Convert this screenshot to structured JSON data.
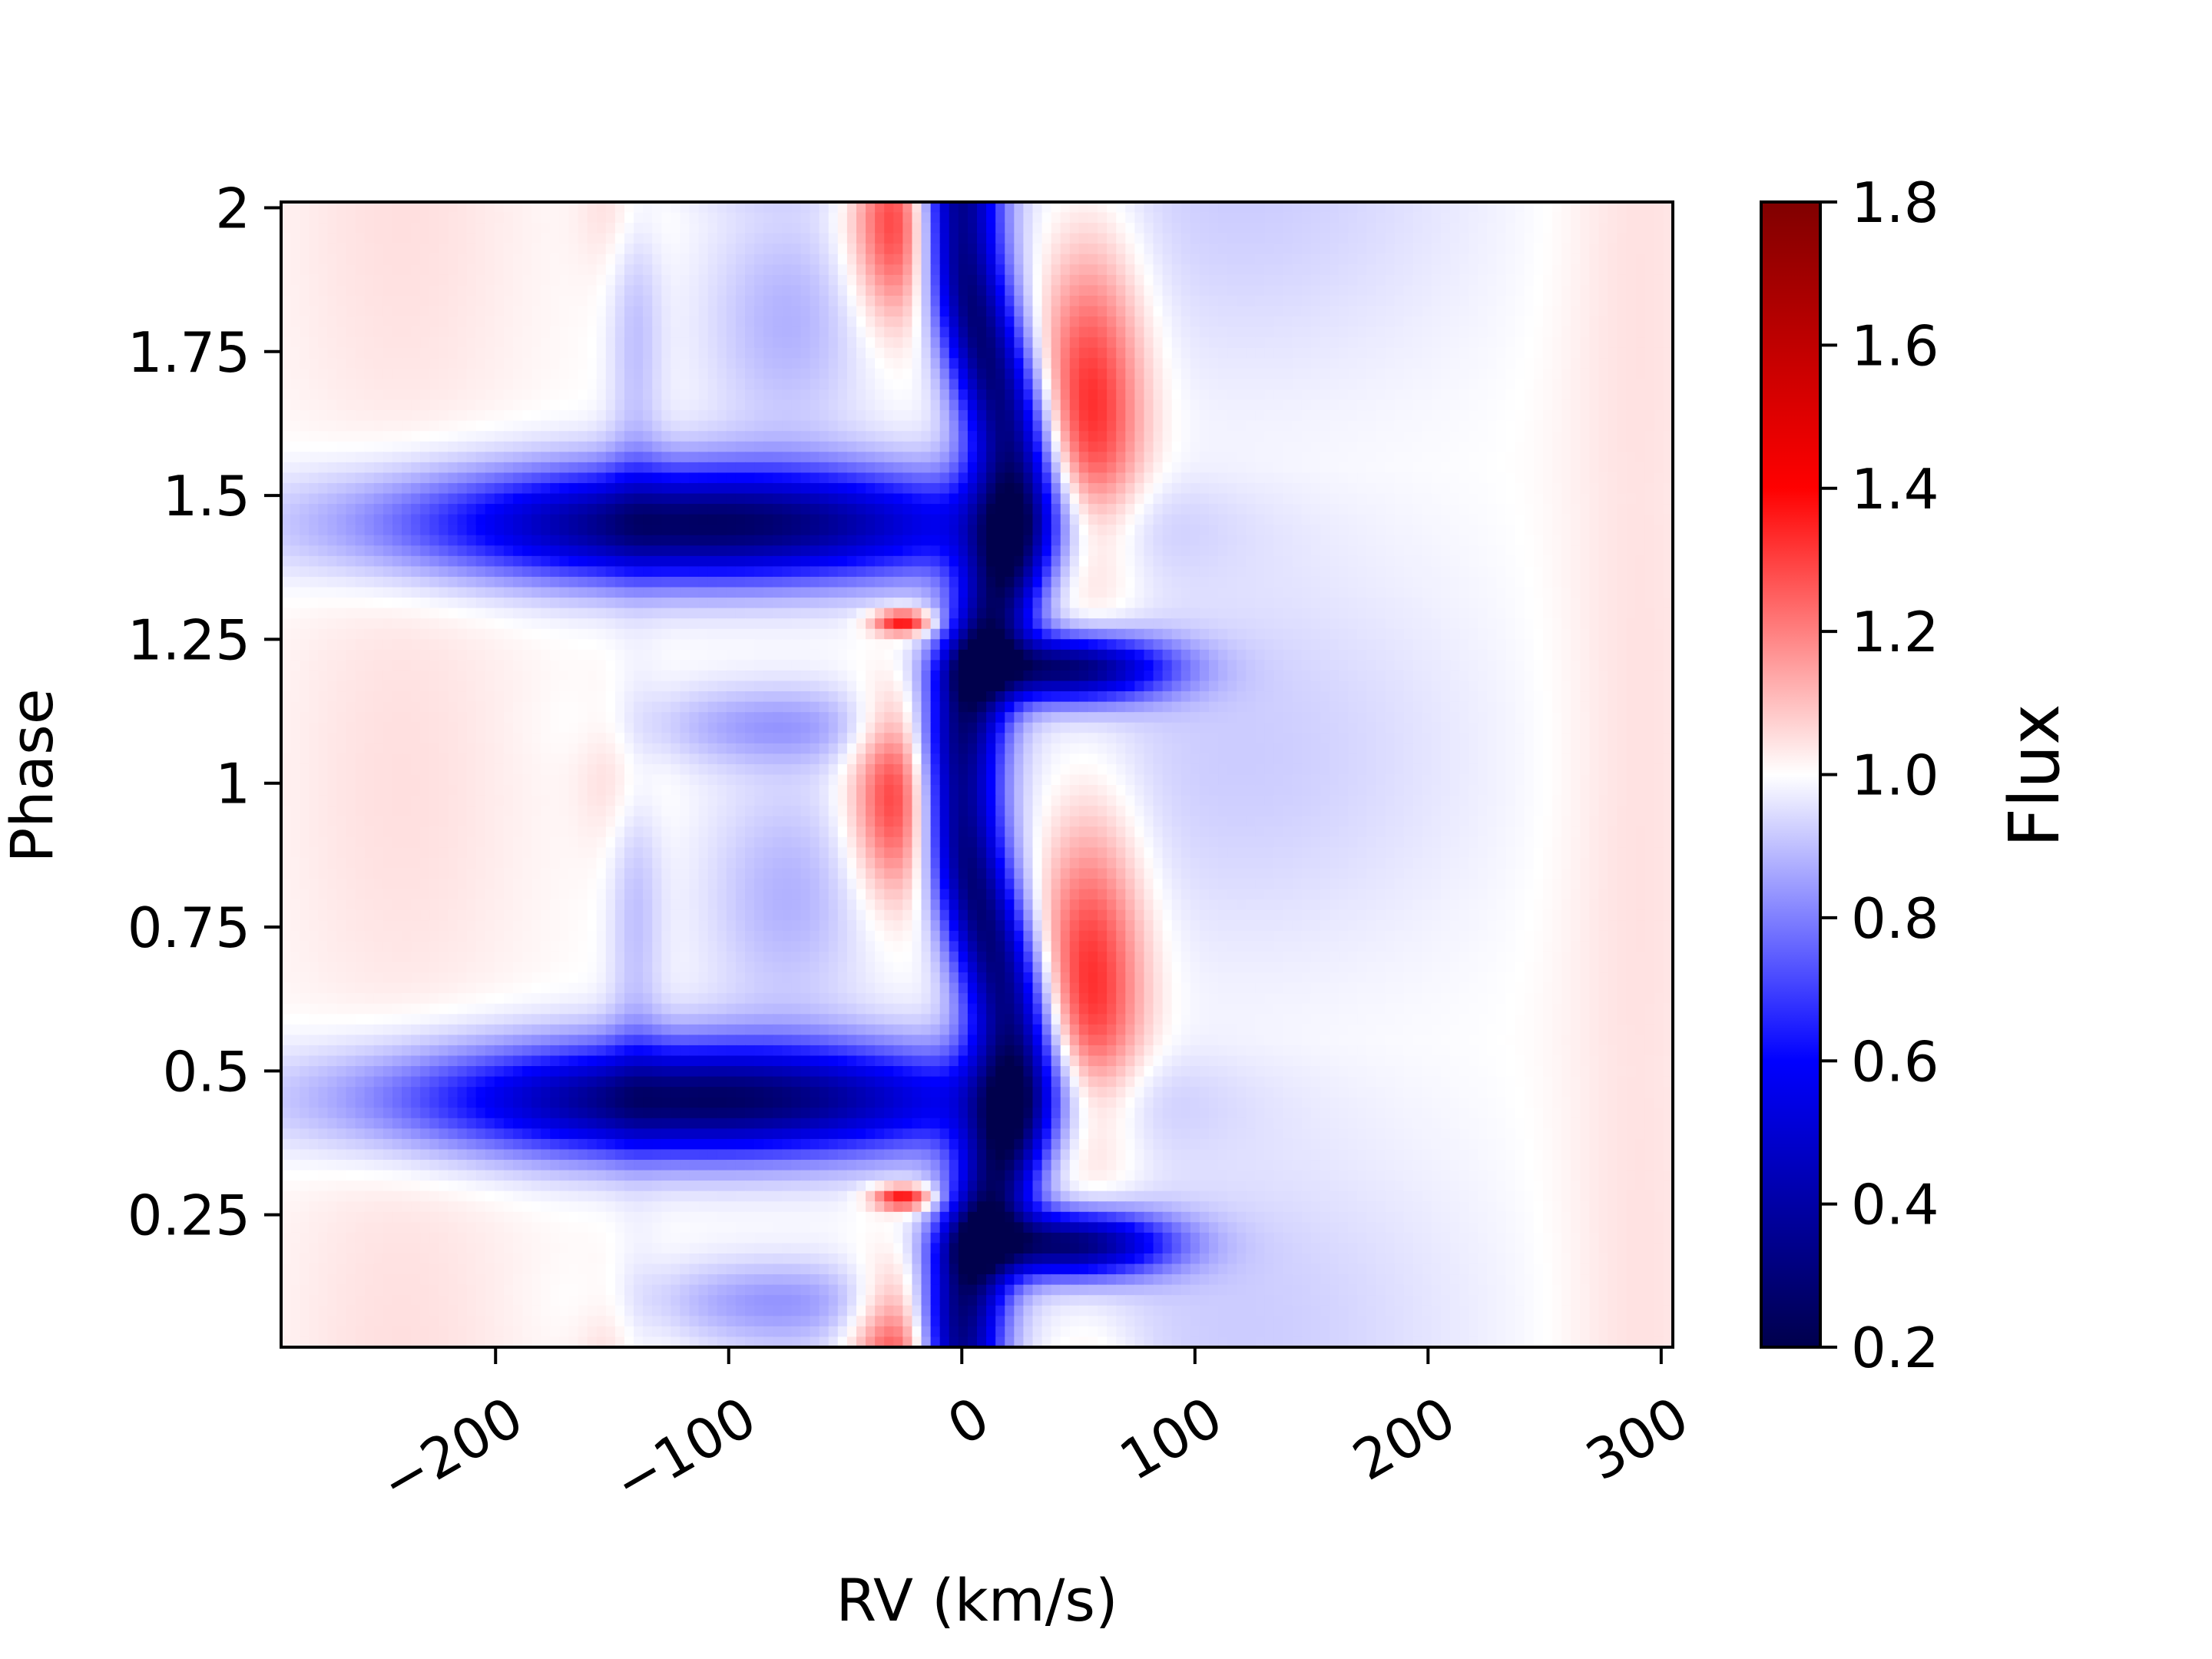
{
  "chart_data": {
    "type": "heatmap",
    "title": "",
    "xlabel": "RV (km/s)",
    "ylabel": "Phase",
    "xlim": [
      -292,
      305
    ],
    "ylim": [
      2.01,
      0.02
    ],
    "x_ticks": [
      -200,
      -100,
      0,
      100,
      200,
      300
    ],
    "x_tick_labels": [
      "−200",
      "−100",
      "0",
      "100",
      "200",
      "300"
    ],
    "y_ticks": [
      0.25,
      0.5,
      0.75,
      1,
      1.25,
      1.5,
      1.75,
      2
    ],
    "y_tick_labels": [
      "0.25",
      "0.5",
      "0.75",
      "1",
      "1.25",
      "1.5",
      "1.75",
      "2"
    ],
    "colorbar": {
      "label": "Flux",
      "range": [
        0.2,
        1.8
      ],
      "ticks": [
        0.2,
        0.4,
        0.6,
        0.8,
        1.0,
        1.2,
        1.4,
        1.6,
        1.8
      ],
      "tick_labels": [
        "0.2",
        "0.4",
        "0.6",
        "0.8",
        "1.0",
        "1.2",
        "1.4",
        "1.6",
        "1.8"
      ],
      "colormap": "seismic",
      "colors": [
        "#00004c",
        "#0000ff",
        "#ffffff",
        "#ff0000",
        "#800000"
      ]
    },
    "features": [
      {
        "kind": "absorption",
        "x": 10,
        "y": 1.0,
        "sx": 13,
        "sy": 1.2,
        "amp": -0.72,
        "rv_drift": 12,
        "period": 1
      },
      {
        "kind": "absorption",
        "x": -110,
        "y": 0.45,
        "sx": 90,
        "sy": 0.07,
        "amp": -0.75,
        "period": 1
      },
      {
        "kind": "absorption",
        "x": 45,
        "y": 0.2,
        "sx": 30,
        "sy": 0.04,
        "amp": -0.7,
        "period": 1
      },
      {
        "kind": "absorption",
        "x": -80,
        "y": 0.1,
        "sx": 40,
        "sy": 0.05,
        "amp": -0.15,
        "period": 1
      },
      {
        "kind": "emission",
        "x": -25,
        "y": 0.28,
        "sx": 9,
        "sy": 0.015,
        "amp": 0.4,
        "period": 1
      },
      {
        "kind": "emission",
        "x": 55,
        "y": 0.65,
        "sx": 16,
        "sy": 0.2,
        "amp": 0.35,
        "period": 1
      },
      {
        "kind": "emission",
        "x": -25,
        "y": 0.98,
        "sx": 14,
        "sy": 0.12,
        "amp": 0.4,
        "period": 1
      },
      {
        "kind": "absorption",
        "x": 120,
        "y": 1.05,
        "sx": 70,
        "sy": 0.25,
        "amp": -0.08,
        "period": 1
      },
      {
        "kind": "absorption",
        "x": -75,
        "y": 0.8,
        "sx": 25,
        "sy": 0.15,
        "amp": -0.12,
        "period": 1
      },
      {
        "kind": "absorption",
        "x": -140,
        "y": 0.8,
        "sx": 8,
        "sy": 0.25,
        "amp": -0.1,
        "period": 1
      },
      {
        "kind": "emission",
        "x": -145,
        "y": 1.02,
        "sx": 12,
        "sy": 0.1,
        "amp": 0.08,
        "period": 1
      },
      {
        "kind": "emission",
        "x": -240,
        "y": 1.0,
        "sx": 40,
        "sy": 0.4,
        "amp": 0.05,
        "period": 1
      },
      {
        "kind": "emission",
        "x": 290,
        "y": 1.0,
        "sx": 25,
        "sy": 1.0,
        "amp": 0.05,
        "period": 1
      }
    ]
  }
}
